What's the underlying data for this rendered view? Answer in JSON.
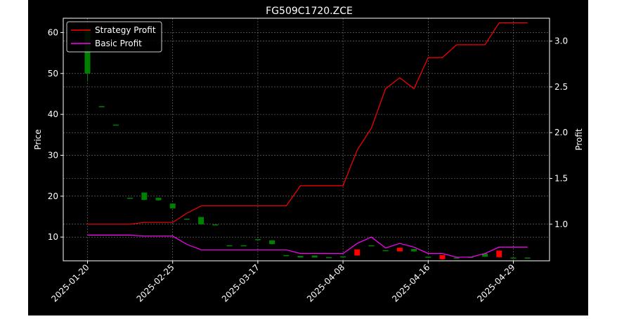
{
  "chart_data": {
    "type": "candlestick+line",
    "title": "FG509C1720.ZCE",
    "xlabel": "",
    "ylabel_left": "Price",
    "ylabel_right": "Profit",
    "ylim_left": [
      4.2,
      63.5
    ],
    "ylim_right": [
      0.6,
      3.25
    ],
    "left_ticks": [
      10,
      20,
      30,
      40,
      50,
      60
    ],
    "right_ticks": [
      "1.0",
      "1.5",
      "2.0",
      "2.5",
      "3.0"
    ],
    "x_tick_labels": [
      "2025-01-20",
      "2025-02-25",
      "2025-03-17",
      "2025-04-08",
      "2025-04-16",
      "2025-04-29"
    ],
    "x_tick_index": [
      0,
      6,
      12,
      18,
      24,
      30
    ],
    "grid": true,
    "legend_position": "top-left",
    "colors": {
      "background": "#000000",
      "up": "#008000",
      "down": "#ff0000",
      "strategy": "#ff0000",
      "basic": "#ff00ff",
      "grid": "#b0b0b0"
    },
    "candles": [
      {
        "o": 50.0,
        "c": 61.0,
        "h": 61.5,
        "l": 48.0
      },
      {
        "o": 42.0,
        "c": 42.0,
        "h": 42.0,
        "l": 42.0
      },
      {
        "o": 37.5,
        "c": 37.5,
        "h": 37.5,
        "l": 37.5
      },
      {
        "o": 19.6,
        "c": 19.6,
        "h": 19.6,
        "l": 19.6
      },
      {
        "o": 19.1,
        "c": 20.9,
        "h": 20.9,
        "l": 19.0
      },
      {
        "o": 19.0,
        "c": 19.6,
        "h": 19.6,
        "l": 18.9
      },
      {
        "o": 17.0,
        "c": 18.2,
        "h": 18.2,
        "l": 17.0
      },
      {
        "o": 14.5,
        "c": 14.5,
        "h": 14.5,
        "l": 14.5
      },
      {
        "o": 13.1,
        "c": 14.9,
        "h": 14.9,
        "l": 13.0
      },
      {
        "o": 13.1,
        "c": 13.1,
        "h": 13.1,
        "l": 13.1
      },
      {
        "o": 8.0,
        "c": 8.0,
        "h": 8.0,
        "l": 8.0
      },
      {
        "o": 8.0,
        "c": 8.0,
        "h": 8.0,
        "l": 8.0
      },
      {
        "o": 9.5,
        "c": 9.5,
        "h": 9.5,
        "l": 9.5
      },
      {
        "o": 8.3,
        "c": 9.2,
        "h": 9.2,
        "l": 8.2
      },
      {
        "o": 5.6,
        "c": 5.6,
        "h": 5.6,
        "l": 5.6
      },
      {
        "o": 5.0,
        "c": 5.4,
        "h": 5.4,
        "l": 5.0
      },
      {
        "o": 5.0,
        "c": 5.5,
        "h": 5.5,
        "l": 5.0
      },
      {
        "o": 5.1,
        "c": 5.1,
        "h": 5.1,
        "l": 5.1
      },
      {
        "o": 5.3,
        "c": 5.3,
        "h": 5.3,
        "l": 5.3
      },
      {
        "o": 7.0,
        "c": 5.5,
        "h": 7.0,
        "l": 5.4
      },
      {
        "o": 8.0,
        "c": 8.0,
        "h": 8.0,
        "l": 8.0
      },
      {
        "o": 6.8,
        "c": 6.8,
        "h": 6.8,
        "l": 6.8
      },
      {
        "o": 7.4,
        "c": 6.5,
        "h": 7.4,
        "l": 6.5
      },
      {
        "o": 6.5,
        "c": 7.1,
        "h": 7.1,
        "l": 6.4
      },
      {
        "o": 5.2,
        "c": 5.2,
        "h": 5.2,
        "l": 5.2
      },
      {
        "o": 5.6,
        "c": 4.6,
        "h": 5.6,
        "l": 4.5
      },
      {
        "o": 5.0,
        "c": 5.0,
        "h": 5.0,
        "l": 5.0
      },
      {
        "o": 5.2,
        "c": 5.2,
        "h": 5.2,
        "l": 5.2
      },
      {
        "o": 5.2,
        "c": 6.0,
        "h": 6.0,
        "l": 5.1
      },
      {
        "o": 6.7,
        "c": 5.1,
        "h": 6.7,
        "l": 5.0
      },
      {
        "o": 5.0,
        "c": 5.0,
        "h": 5.0,
        "l": 5.0
      },
      {
        "o": 5.0,
        "c": 5.0,
        "h": 5.0,
        "l": 5.0
      }
    ],
    "series": [
      {
        "name": "Strategy Profit",
        "values": [
          1.0,
          1.0,
          1.0,
          1.0,
          1.02,
          1.02,
          1.02,
          1.12,
          1.2,
          1.2,
          1.2,
          1.2,
          1.2,
          1.2,
          1.2,
          1.42,
          1.42,
          1.42,
          1.42,
          1.81,
          2.05,
          2.48,
          2.6,
          2.48,
          2.82,
          2.82,
          2.96,
          2.96,
          2.96,
          3.2,
          3.2,
          3.2
        ]
      },
      {
        "name": "Basic Profit",
        "values": [
          0.88,
          0.88,
          0.88,
          0.88,
          0.87,
          0.87,
          0.87,
          0.78,
          0.72,
          0.72,
          0.72,
          0.72,
          0.72,
          0.72,
          0.72,
          0.68,
          0.68,
          0.68,
          0.68,
          0.79,
          0.86,
          0.74,
          0.79,
          0.75,
          0.68,
          0.68,
          0.64,
          0.64,
          0.68,
          0.75,
          0.75,
          0.75
        ]
      }
    ]
  }
}
